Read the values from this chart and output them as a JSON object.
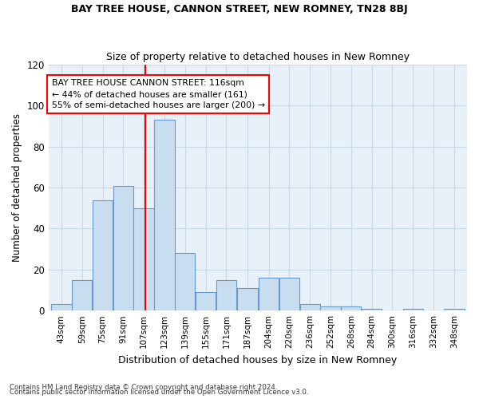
{
  "title1": "BAY TREE HOUSE, CANNON STREET, NEW ROMNEY, TN28 8BJ",
  "title2": "Size of property relative to detached houses in New Romney",
  "xlabel": "Distribution of detached houses by size in New Romney",
  "ylabel": "Number of detached properties",
  "footnote1": "Contains HM Land Registry data © Crown copyright and database right 2024.",
  "footnote2": "Contains public sector information licensed under the Open Government Licence v3.0.",
  "bar_color": "#c9ddf0",
  "bar_edge_color": "#6699cc",
  "grid_color": "#c8d8e8",
  "bg_color": "#e8f0f8",
  "annotation_text": "BAY TREE HOUSE CANNON STREET: 116sqm\n← 44% of detached houses are smaller (161)\n55% of semi-detached houses are larger (200) →",
  "vline_x": 116,
  "bin_edges": [
    43,
    59,
    75,
    91,
    107,
    123,
    139,
    155,
    171,
    187,
    204,
    220,
    236,
    252,
    268,
    284,
    300,
    316,
    332,
    348,
    364
  ],
  "bar_heights": [
    3,
    15,
    54,
    61,
    50,
    93,
    28,
    9,
    15,
    11,
    16,
    16,
    3,
    2,
    2,
    1,
    0,
    1,
    0,
    1
  ],
  "ylim": [
    0,
    120
  ],
  "yticks": [
    0,
    20,
    40,
    60,
    80,
    100,
    120
  ]
}
